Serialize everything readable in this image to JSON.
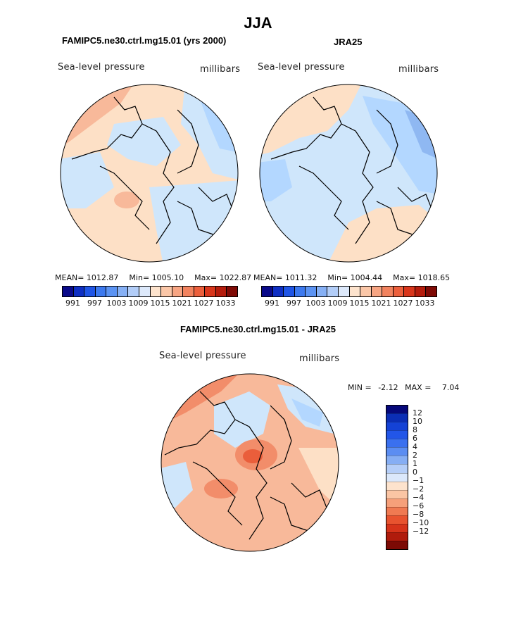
{
  "figure": {
    "title": "JJA",
    "colors": {
      "ocean": "#cfe6fb",
      "coast": "#000000",
      "low1": "#b3d7ff",
      "low2": "#8fb8f2",
      "high1": "#fde0c6",
      "high2": "#f8b99a",
      "high3": "#f28d6a",
      "high4": "#ea5e3b"
    }
  },
  "panels": [
    {
      "title": "FAMIPC5.ne30.ctrl.mg15.01 (yrs 2000)",
      "left_label": "Sea-level pressure",
      "right_label": "millibars",
      "stats": {
        "mean_label": "MEAN=",
        "mean": "1012.87",
        "min_label": "Min=",
        "min": "1005.10",
        "max_label": "Max=",
        "max": "1022.87"
      }
    },
    {
      "title": "JRA25",
      "left_label": "Sea-level pressure",
      "right_label": "millibars",
      "stats": {
        "mean_label": "MEAN=",
        "mean": "1011.32",
        "min_label": "Min=",
        "min": "1004.44",
        "max_label": "Max=",
        "max": "1018.65"
      }
    },
    {
      "title": "FAMIPC5.ne30.ctrl.mg15.01 - JRA25",
      "left_label": "Sea-level pressure",
      "right_label": "millibars",
      "stats": {
        "min_label": "MIN =",
        "min": "-2.12",
        "max_label": "MAX =",
        "max": "7.04"
      }
    }
  ],
  "colorbar_horizontal": {
    "colors": [
      "#0a0a8a",
      "#0e2fc4",
      "#1f55e6",
      "#3c79ef",
      "#5b93f3",
      "#86b0f5",
      "#b2cdf8",
      "#dde9fb",
      "#fde3cd",
      "#fbc7a8",
      "#f7a583",
      "#f2835f",
      "#ec5f3c",
      "#d9361b",
      "#b51c0c",
      "#7f0a05"
    ],
    "tick_labels": [
      "991",
      "997",
      "1003",
      "1009",
      "1015",
      "1021",
      "1027",
      "1033"
    ]
  },
  "colorbar_vertical": {
    "colors": [
      "#06087a",
      "#0b2eb5",
      "#1442d6",
      "#2256e8",
      "#3a70ef",
      "#5b8df2",
      "#86aef4",
      "#b5cef8",
      "#dbe8fb",
      "#fde3cd",
      "#fbc5a4",
      "#f6a07a",
      "#f07a52",
      "#e8532f",
      "#d6331a",
      "#b01b0c",
      "#7c0a05"
    ],
    "tick_labels": [
      "12",
      "10",
      "8",
      "6",
      "4",
      "2",
      "1",
      "0",
      "−1",
      "−2",
      "−4",
      "−6",
      "−8",
      "−10",
      "−12"
    ]
  }
}
